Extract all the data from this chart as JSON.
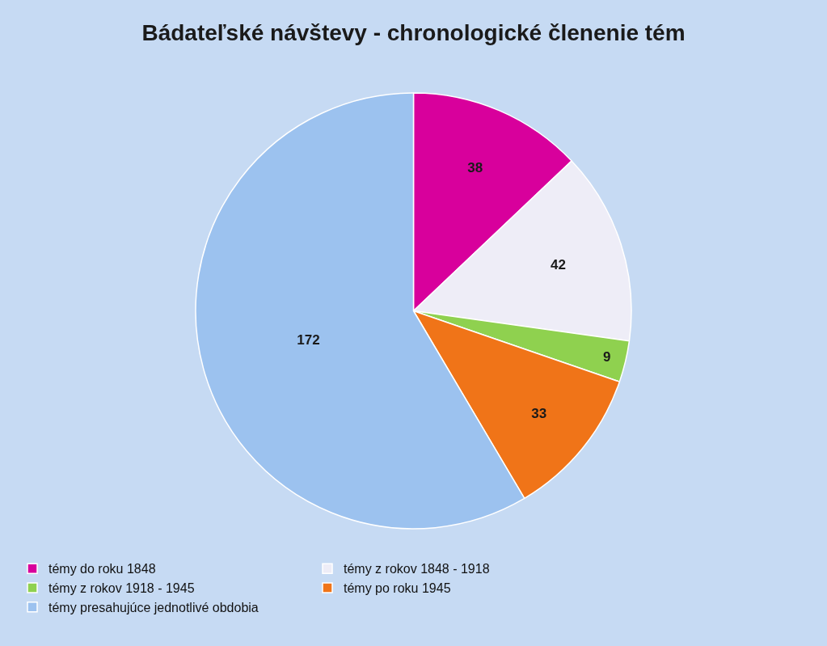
{
  "chart_data": {
    "type": "pie",
    "title": "Bádateľské návštevy - chronologické členenie tém",
    "categories": [
      "témy do roku 1848",
      "témy z rokov 1848 - 1918",
      "témy z rokov 1918 - 1945",
      "témy po roku 1945",
      "témy presahujúce jednotlivé obdobia"
    ],
    "values": [
      38,
      42,
      9,
      33,
      172
    ],
    "colors": [
      "#d8009c",
      "#eeedf7",
      "#8fd14f",
      "#f07418",
      "#9cc2ef"
    ],
    "data_labels": true,
    "legend": "bottom"
  }
}
